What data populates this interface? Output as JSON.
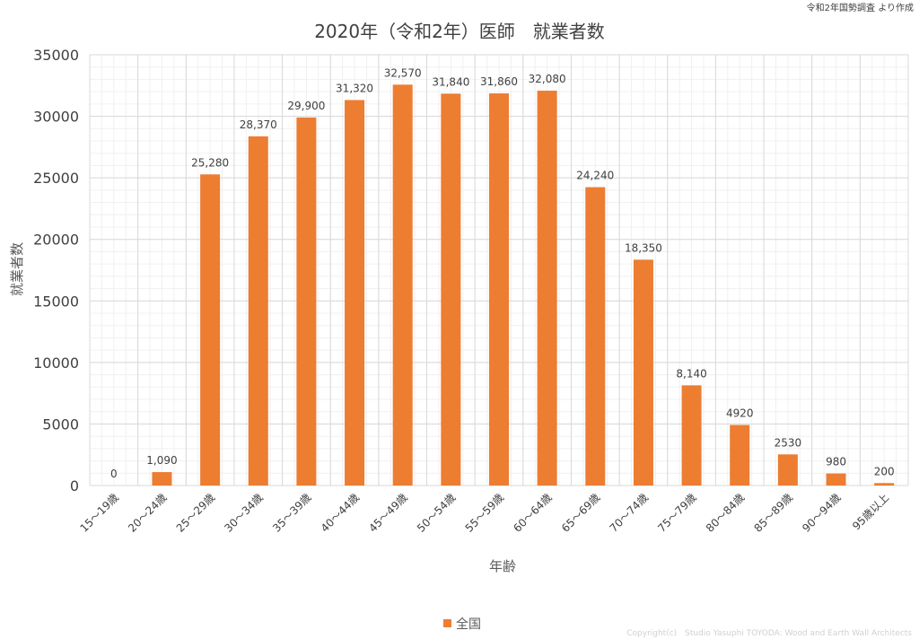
{
  "source_note": "令和2年国勢調査 より作成",
  "copyright": "Copyright(c)　Studio Yasuphi TOYODA: Wood and Earth Wall Architects",
  "colors": {
    "bar": "#ED7D31",
    "grid_major": "#D9D9D9",
    "grid_minor": "#F0F0F0",
    "text": "#595959"
  },
  "chart_data": {
    "type": "bar",
    "title": "2020年（令和2年）医師　就業者数",
    "xlabel": "年齢",
    "ylabel": "就業者数",
    "ylim": [
      0,
      35000
    ],
    "yticks": [
      0,
      5000,
      10000,
      15000,
      20000,
      25000,
      30000,
      35000
    ],
    "grid": true,
    "legend_position": "bottom",
    "categories": [
      "15～19歳",
      "20～24歳",
      "25～29歳",
      "30～34歳",
      "35～39歳",
      "40～44歳",
      "45～49歳",
      "50～54歳",
      "55～59歳",
      "60～64歳",
      "65～69歳",
      "70～74歳",
      "75～79歳",
      "80～84歳",
      "85～89歳",
      "90～94歳",
      "95歳以上"
    ],
    "series": [
      {
        "name": "全国",
        "values": [
          0,
          1090,
          25280,
          28370,
          29900,
          31320,
          32570,
          31840,
          31860,
          32080,
          24240,
          18350,
          8140,
          4920,
          2530,
          980,
          200
        ],
        "labels": [
          "0",
          "1,090",
          "25,280",
          "28,370",
          "29,900",
          "31,320",
          "32,570",
          "31,840",
          "31,860",
          "32,080",
          "24,240",
          "18,350",
          "8,140",
          "4920",
          "2530",
          "980",
          "200"
        ]
      }
    ]
  }
}
